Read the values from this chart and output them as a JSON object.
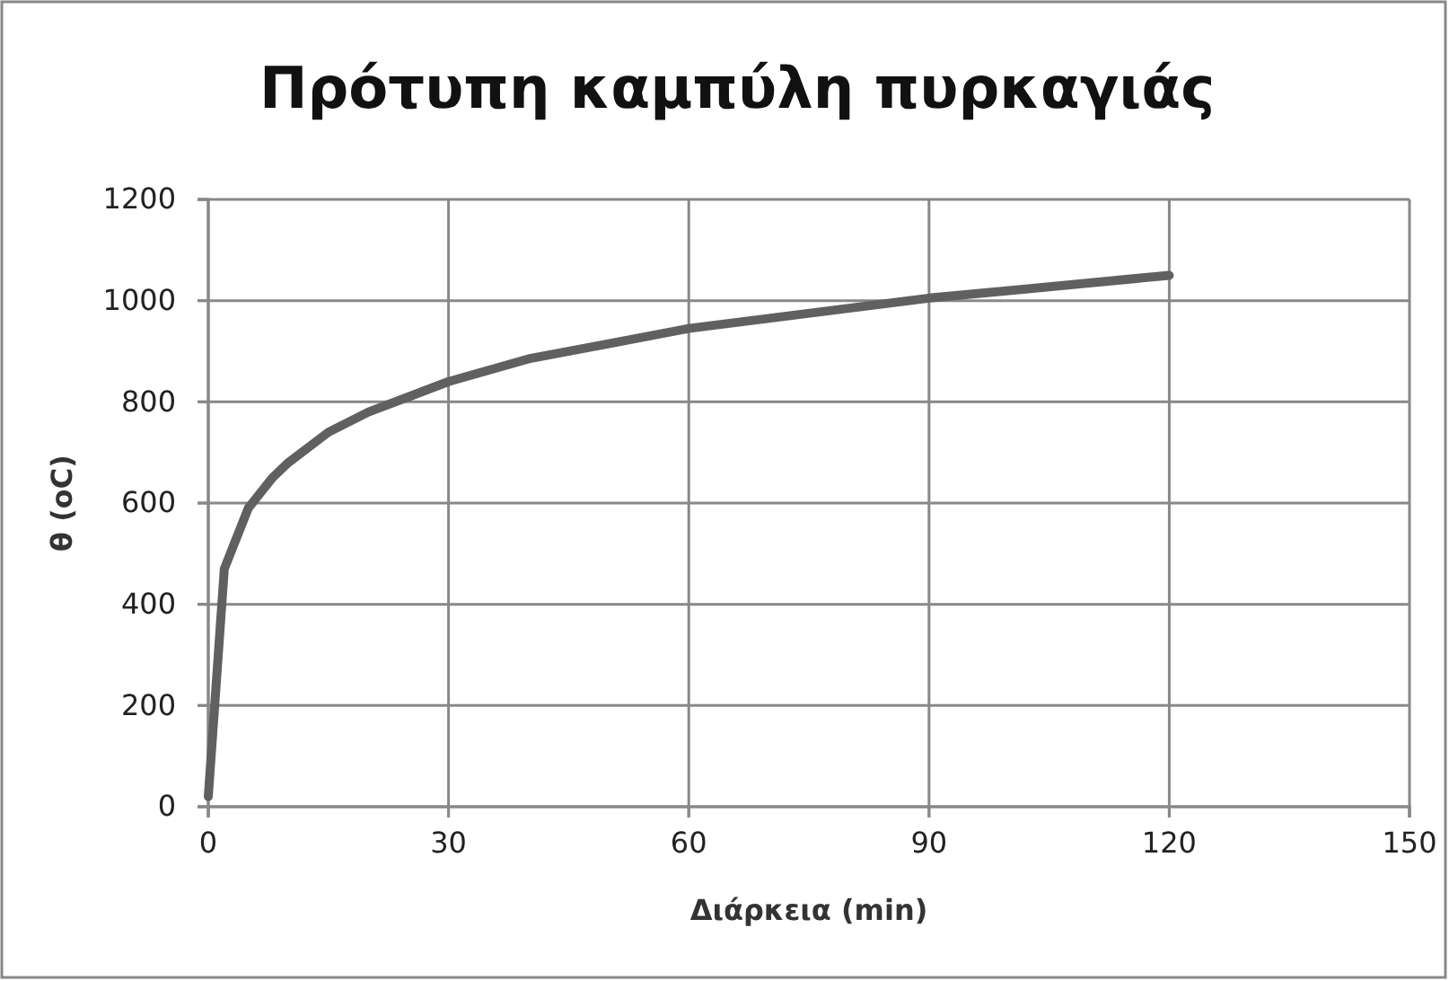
{
  "chart_data": {
    "type": "line",
    "title": "Πρότυπη καμπύλη πυρκαγιάς",
    "xlabel": "Διάρκεια (min)",
    "ylabel": "θ (oC)",
    "series": [
      {
        "color": "#606060",
        "x": [
          0,
          2,
          3,
          5,
          8,
          10,
          15,
          20,
          25,
          30,
          40,
          50,
          60,
          70,
          80,
          90,
          100,
          110,
          120
        ],
        "values": [
          20,
          470,
          510,
          590,
          650,
          680,
          740,
          780,
          810,
          840,
          885,
          915,
          945,
          965,
          985,
          1005,
          1020,
          1035,
          1050
        ]
      }
    ],
    "xlim": [
      0,
      150
    ],
    "xticks": [
      0,
      30,
      60,
      90,
      120,
      150
    ],
    "ylim": [
      0,
      1200
    ],
    "yticks": [
      0,
      200,
      400,
      600,
      800,
      1000,
      1200
    ],
    "grid": true,
    "marker": "none",
    "line_style": "solid"
  }
}
